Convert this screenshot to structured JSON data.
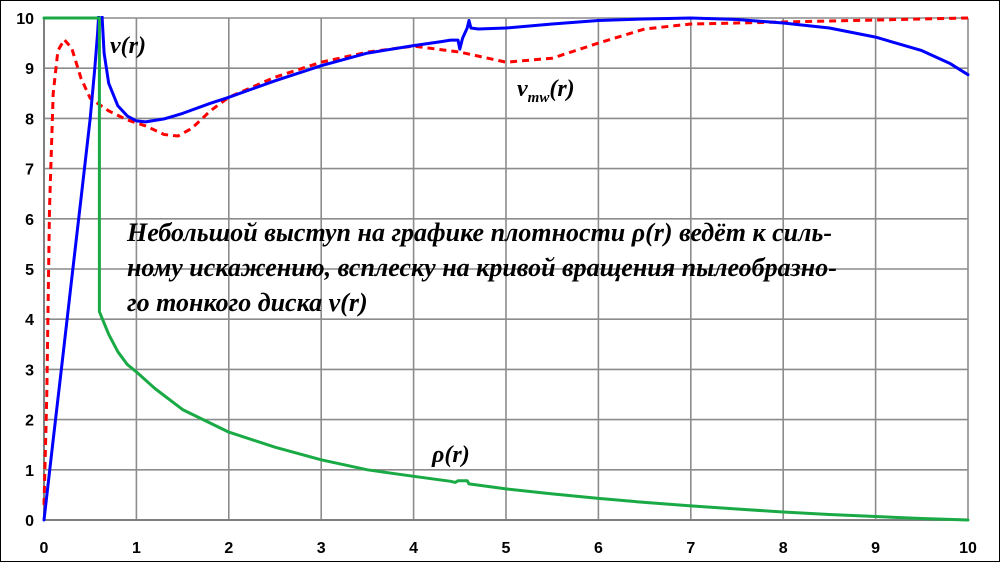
{
  "chart_data": {
    "type": "line",
    "xlim": [
      0,
      10
    ],
    "ylim": [
      0,
      10
    ],
    "x_ticks": [
      "0",
      "1",
      "2",
      "3",
      "4",
      "5",
      "6",
      "7",
      "8",
      "9",
      "10"
    ],
    "y_ticks": [
      "0",
      "1",
      "2",
      "3",
      "4",
      "5",
      "6",
      "7",
      "8",
      "9",
      "10"
    ],
    "grid": true,
    "annotation_lines": [
      "Небольшой выступ на графике плотности ρ(r) ведёт к силь-",
      "ному искажению, всплеску на кривой вращения пылеобразно-",
      "го тонкого диска v(r)"
    ],
    "series": [
      {
        "name": "v(r)",
        "label_base": "v(r)",
        "color": "#0000ff",
        "style": "solid",
        "points": [
          [
            0,
            0
          ],
          [
            0.1,
            1.6
          ],
          [
            0.2,
            3.2
          ],
          [
            0.3,
            4.8
          ],
          [
            0.4,
            6.4
          ],
          [
            0.5,
            8.0
          ],
          [
            0.55,
            9.0
          ],
          [
            0.58,
            9.7
          ],
          [
            0.6,
            10.3
          ],
          [
            0.62,
            10.3
          ],
          [
            0.65,
            9.3
          ],
          [
            0.7,
            8.7
          ],
          [
            0.8,
            8.25
          ],
          [
            0.9,
            8.05
          ],
          [
            1.0,
            7.95
          ],
          [
            1.1,
            7.93
          ],
          [
            1.3,
            7.99
          ],
          [
            1.5,
            8.1
          ],
          [
            1.8,
            8.3
          ],
          [
            2.0,
            8.42
          ],
          [
            2.5,
            8.75
          ],
          [
            3.0,
            9.05
          ],
          [
            3.5,
            9.3
          ],
          [
            4.0,
            9.45
          ],
          [
            4.3,
            9.53
          ],
          [
            4.4,
            9.56
          ],
          [
            4.48,
            9.56
          ],
          [
            4.5,
            9.38
          ],
          [
            4.53,
            9.6
          ],
          [
            4.58,
            9.8
          ],
          [
            4.6,
            9.95
          ],
          [
            4.62,
            9.8
          ],
          [
            4.7,
            9.78
          ],
          [
            5.0,
            9.8
          ],
          [
            5.5,
            9.88
          ],
          [
            6.0,
            9.95
          ],
          [
            6.5,
            9.98
          ],
          [
            7.0,
            10.0
          ],
          [
            7.5,
            9.97
          ],
          [
            8.0,
            9.9
          ],
          [
            8.5,
            9.8
          ],
          [
            9.0,
            9.62
          ],
          [
            9.5,
            9.35
          ],
          [
            9.8,
            9.1
          ],
          [
            10.0,
            8.87
          ]
        ]
      },
      {
        "name": "vmw(r)",
        "label_base": "v",
        "label_sub": "mw",
        "label_tail": "(r)",
        "color": "#ff0000",
        "style": "dashed",
        "points": [
          [
            0,
            0.3
          ],
          [
            0.03,
            2.5
          ],
          [
            0.06,
            6.2
          ],
          [
            0.1,
            8.5
          ],
          [
            0.15,
            9.35
          ],
          [
            0.22,
            9.57
          ],
          [
            0.3,
            9.4
          ],
          [
            0.4,
            8.8
          ],
          [
            0.5,
            8.4
          ],
          [
            0.7,
            8.15
          ],
          [
            0.9,
            7.97
          ],
          [
            1.1,
            7.85
          ],
          [
            1.3,
            7.68
          ],
          [
            1.45,
            7.65
          ],
          [
            1.6,
            7.8
          ],
          [
            1.8,
            8.15
          ],
          [
            2.0,
            8.42
          ],
          [
            2.5,
            8.82
          ],
          [
            3.0,
            9.12
          ],
          [
            3.5,
            9.32
          ],
          [
            4.0,
            9.44
          ],
          [
            4.5,
            9.32
          ],
          [
            5.0,
            9.12
          ],
          [
            5.5,
            9.2
          ],
          [
            6.0,
            9.5
          ],
          [
            6.5,
            9.78
          ],
          [
            7.0,
            9.88
          ],
          [
            7.5,
            9.9
          ],
          [
            8.0,
            9.92
          ],
          [
            9.0,
            9.96
          ],
          [
            10.0,
            10.0
          ]
        ]
      },
      {
        "name": "ρ(r)",
        "label_base": "ρ(r)",
        "color": "#1aaa45",
        "style": "solid",
        "points": [
          [
            0,
            10.0
          ],
          [
            0.6,
            10.0
          ],
          [
            0.6,
            4.15
          ],
          [
            0.7,
            3.7
          ],
          [
            0.8,
            3.35
          ],
          [
            0.9,
            3.1
          ],
          [
            1.0,
            2.95
          ],
          [
            1.2,
            2.62
          ],
          [
            1.5,
            2.2
          ],
          [
            2.0,
            1.75
          ],
          [
            2.5,
            1.45
          ],
          [
            3.0,
            1.2
          ],
          [
            3.5,
            1.0
          ],
          [
            4.0,
            0.87
          ],
          [
            4.4,
            0.77
          ],
          [
            4.45,
            0.75
          ],
          [
            4.48,
            0.78
          ],
          [
            4.58,
            0.78
          ],
          [
            4.6,
            0.72
          ],
          [
            5.0,
            0.62
          ],
          [
            5.5,
            0.52
          ],
          [
            6.0,
            0.43
          ],
          [
            6.5,
            0.35
          ],
          [
            7.0,
            0.28
          ],
          [
            7.5,
            0.22
          ],
          [
            8.0,
            0.16
          ],
          [
            8.5,
            0.11
          ],
          [
            9.0,
            0.07
          ],
          [
            9.5,
            0.03
          ],
          [
            10.0,
            0.0
          ]
        ]
      }
    ]
  }
}
